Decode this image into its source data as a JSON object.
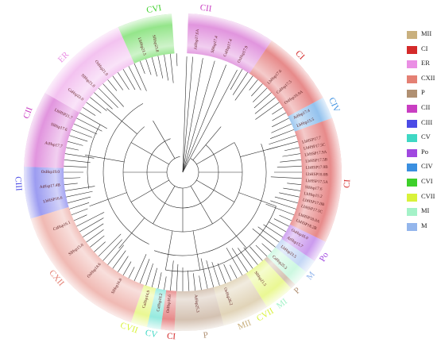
{
  "colors": {
    "MII": "#c9b07e",
    "CI": "#d42a2a",
    "ER": "#ea8fe4",
    "CXII": "#e48074",
    "P": "#b09072",
    "CII": "#c93ec2",
    "CIII": "#4b4be6",
    "CV": "#3fd8c4",
    "Po": "#a048e0",
    "CIV": "#3a8fe0",
    "CVI": "#3dd02a",
    "CVII": "#d9f23a",
    "MI": "#a4f2c8",
    "M": "#94b6ec",
    "branch": "#2b2b2b"
  },
  "legend": [
    {
      "key": "MII",
      "label": "MII"
    },
    {
      "key": "CI",
      "label": "CI"
    },
    {
      "key": "ER",
      "label": "ER"
    },
    {
      "key": "CXII",
      "label": "CXII"
    },
    {
      "key": "P",
      "label": "P"
    },
    {
      "key": "CII",
      "label": "CII"
    },
    {
      "key": "CIII",
      "label": "CIII"
    },
    {
      "key": "CV",
      "label": "CV"
    },
    {
      "key": "Po",
      "label": "Po"
    },
    {
      "key": "CIV",
      "label": "CIV"
    },
    {
      "key": "CVI",
      "label": "CVI"
    },
    {
      "key": "CVII",
      "label": "CVII"
    },
    {
      "key": "MI",
      "label": "MI"
    },
    {
      "key": "M",
      "label": "M"
    }
  ],
  "clades": [
    {
      "key": "CII",
      "label": "CII",
      "start": 2,
      "end": 34,
      "label_angle": 8
    },
    {
      "key": "CI",
      "label": "CI",
      "start": 34,
      "end": 62,
      "label_angle": 45
    },
    {
      "key": "CIV",
      "label": "CIV",
      "start": 62,
      "end": 70,
      "label_angle": 66
    },
    {
      "key": "CI",
      "label": "CI",
      "start": 70,
      "end": 116,
      "label_angle": 94
    },
    {
      "key": "Po",
      "label": "Po",
      "start": 116,
      "end": 124,
      "label_angle": 121
    },
    {
      "key": "M",
      "label": "M",
      "start": 124,
      "end": 129,
      "label_angle": 129
    },
    {
      "key": "MI",
      "label": "MI",
      "start": 129,
      "end": 135,
      "label_angle": 143
    },
    {
      "key": "P",
      "label": "P",
      "start": 135,
      "end": 137,
      "label_angle": 136
    },
    {
      "key": "CVII",
      "label": "CVII",
      "start": 137,
      "end": 148,
      "label_angle": 150
    },
    {
      "key": "MII",
      "label": "MII",
      "start": 148,
      "end": 165,
      "label_angle": 158
    },
    {
      "key": "P",
      "label": "P",
      "start": 165,
      "end": 183,
      "label_angle": 172
    },
    {
      "key": "CI",
      "label": "CI",
      "start": 183,
      "end": 188,
      "label_angle": 184
    },
    {
      "key": "CV",
      "label": "CV",
      "start": 188,
      "end": 193,
      "label_angle": 191
    },
    {
      "key": "CVII",
      "label": "CVII",
      "start": 193,
      "end": 199,
      "label_angle": 199
    },
    {
      "key": "CXII",
      "label": "CXII",
      "start": 199,
      "end": 253,
      "label_angle": 230
    },
    {
      "key": "CIII",
      "label": "CIII",
      "start": 253,
      "end": 272,
      "label_angle": 266
    },
    {
      "key": "CII",
      "label": "CII",
      "start": 272,
      "end": 300,
      "label_angle": 291
    },
    {
      "key": "ER",
      "label": "ER",
      "start": 300,
      "end": 336,
      "label_angle": 314
    },
    {
      "key": "CVI",
      "label": "CVI",
      "start": 336,
      "end": 356,
      "label_angle": 350
    }
  ],
  "leaves": [
    {
      "text": "AtHsp17.6A",
      "angle": 6
    },
    {
      "text": "SlHsp17.4",
      "angle": 14
    },
    {
      "text": "CaHsp17.4",
      "angle": 20
    },
    {
      "text": "OsHsp17.9",
      "angle": 27
    },
    {
      "text": "LbHsp17.6",
      "angle": 44
    },
    {
      "text": "CaHsp17.5",
      "angle": 50
    },
    {
      "text": "OsHsp16.9A",
      "angle": 56
    },
    {
      "text": "AtHsp17.4",
      "angle": 64
    },
    {
      "text": "LbHsp15.5",
      "angle": 68
    },
    {
      "text": "LbHSP17.7",
      "angle": 76
    },
    {
      "text": "LbHSP17.5C",
      "angle": 79
    },
    {
      "text": "LbHSP17.9A",
      "angle": 82
    },
    {
      "text": "LbHSP17.5B",
      "angle": 85
    },
    {
      "text": "LbHSP17.9B",
      "angle": 88
    },
    {
      "text": "LbHSP18.0B",
      "angle": 91
    },
    {
      "text": "LbHSP17.5A",
      "angle": 94
    },
    {
      "text": "SlHsp17.6",
      "angle": 97
    },
    {
      "text": "LbHsp15.2",
      "angle": 100
    },
    {
      "text": "LbHSP17.0B",
      "angle": 103
    },
    {
      "text": "LbHSP17.5C",
      "angle": 106
    },
    {
      "text": "LbHSP18.0A",
      "angle": 110
    },
    {
      "text": "LbHSP18.2B",
      "angle": 113
    },
    {
      "text": "OsHsp16.0",
      "angle": 118
    },
    {
      "text": "AtHsp15.7",
      "angle": 122
    },
    {
      "text": "LbHsp23.5",
      "angle": 127
    },
    {
      "text": "CaHsp25.3",
      "angle": 133
    },
    {
      "text": "SlHsp21.5",
      "angle": 144
    },
    {
      "text": "OsHsp26.2",
      "angle": 160
    },
    {
      "text": "AtHsp25.3",
      "angle": 174
    },
    {
      "text": "OsHsp16.6",
      "angle": 186
    },
    {
      "text": "CaHsp18.2",
      "angle": 190
    },
    {
      "text": "CaHsp14.9",
      "angle": 196
    },
    {
      "text": "SlHsp16.8",
      "angle": 210
    },
    {
      "text": "OsHsp18.6",
      "angle": 222
    },
    {
      "text": "SlHsp15.0",
      "angle": 234
    },
    {
      "text": "CaHsp16.1",
      "angle": 246
    },
    {
      "text": "LbHSP16.6",
      "angle": 258
    },
    {
      "text": "AtHsp17.4B",
      "angle": 264
    },
    {
      "text": "OsHsp19.0",
      "angle": 270
    },
    {
      "text": "AtHsp17.7",
      "angle": 282
    },
    {
      "text": "SlHsp17.6",
      "angle": 290
    },
    {
      "text": "LbHSP21.7",
      "angle": 296
    },
    {
      "text": "CaHsp22.0",
      "angle": 306
    },
    {
      "text": "SlHsp21.8",
      "angle": 314
    },
    {
      "text": "OsHsp21.9",
      "angle": 322
    },
    {
      "text": "LbHsp21.5",
      "angle": 342
    },
    {
      "text": "SlHsp23.8",
      "angle": 348
    }
  ]
}
